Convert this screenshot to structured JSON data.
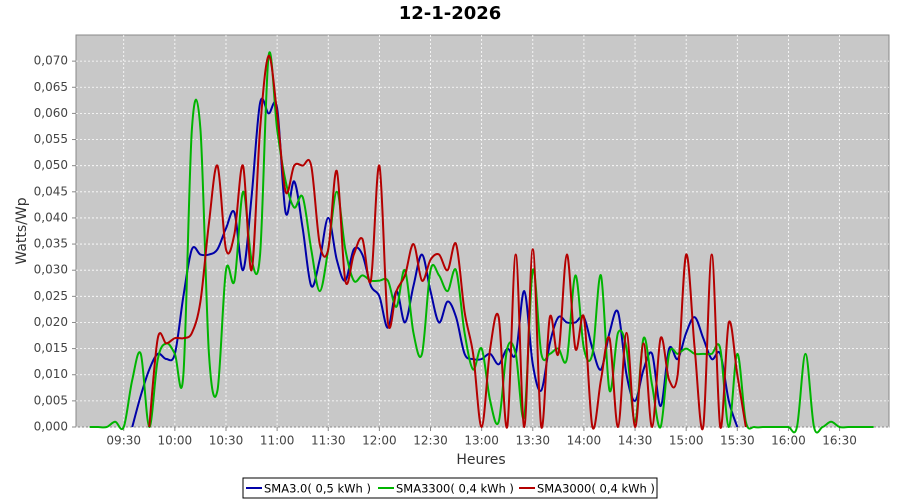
{
  "chart_data": {
    "type": "line",
    "title": "12-1-2026",
    "x_label": "Heures",
    "y_label": "Watts/Wp",
    "x": [
      "09:10",
      "09:15",
      "09:20",
      "09:25",
      "09:30",
      "09:35",
      "09:40",
      "09:45",
      "09:50",
      "09:55",
      "10:00",
      "10:05",
      "10:10",
      "10:15",
      "10:20",
      "10:25",
      "10:30",
      "10:35",
      "10:40",
      "10:45",
      "10:50",
      "10:55",
      "11:00",
      "11:05",
      "11:10",
      "11:15",
      "11:20",
      "11:25",
      "11:30",
      "11:35",
      "11:40",
      "11:45",
      "11:50",
      "11:55",
      "12:00",
      "12:05",
      "12:10",
      "12:15",
      "12:20",
      "12:25",
      "12:30",
      "12:35",
      "12:40",
      "12:45",
      "12:50",
      "12:55",
      "13:00",
      "13:05",
      "13:10",
      "13:15",
      "13:20",
      "13:25",
      "13:30",
      "13:35",
      "13:40",
      "13:45",
      "13:50",
      "13:55",
      "14:00",
      "14:05",
      "14:10",
      "14:15",
      "14:20",
      "14:25",
      "14:30",
      "14:35",
      "14:40",
      "14:45",
      "14:50",
      "14:55",
      "15:00",
      "15:05",
      "15:10",
      "15:15",
      "15:20",
      "15:25",
      "15:30",
      "15:35",
      "15:40",
      "15:45",
      "15:50",
      "15:55",
      "16:00",
      "16:05",
      "16:10",
      "16:15",
      "16:20",
      "16:25",
      "16:30",
      "16:35",
      "16:40",
      "16:45",
      "16:50",
      "16:55"
    ],
    "series": [
      {
        "name": "SMA3.0( 0,5 kWh )",
        "color": "#0000a8",
        "values": [
          null,
          null,
          null,
          null,
          null,
          0.0,
          0.006,
          0.011,
          0.014,
          0.013,
          0.014,
          0.025,
          0.034,
          0.033,
          0.033,
          0.034,
          0.038,
          0.041,
          0.03,
          0.044,
          0.062,
          0.06,
          0.061,
          0.041,
          0.047,
          0.038,
          0.027,
          0.032,
          0.04,
          0.032,
          0.028,
          0.034,
          0.033,
          0.027,
          0.025,
          0.019,
          0.026,
          0.02,
          0.027,
          0.033,
          0.026,
          0.02,
          0.024,
          0.021,
          0.014,
          0.013,
          0.013,
          0.014,
          0.012,
          0.015,
          0.014,
          0.026,
          0.012,
          0.007,
          0.016,
          0.021,
          0.02,
          0.02,
          0.021,
          0.015,
          0.011,
          0.018,
          0.022,
          0.01,
          0.005,
          0.011,
          0.014,
          0.004,
          0.015,
          0.013,
          0.018,
          0.021,
          0.017,
          0.013,
          0.014,
          0.005,
          0.0,
          null,
          null,
          null,
          null,
          null,
          null,
          null,
          null,
          null,
          null,
          null,
          null,
          null,
          null,
          null,
          null,
          null
        ]
      },
      {
        "name": "SMA3300( 0,4 kWh )",
        "color": "#00b400",
        "values": [
          0,
          0,
          0,
          0.001,
          0,
          0.009,
          0.014,
          0,
          0.013,
          0.016,
          0.014,
          0.01,
          0.057,
          0.057,
          0.014,
          0.007,
          0.03,
          0.028,
          0.045,
          0.032,
          0.033,
          0.071,
          0.057,
          0.047,
          0.042,
          0.044,
          0.034,
          0.026,
          0.034,
          0.045,
          0.034,
          0.028,
          0.029,
          0.028,
          0.028,
          0.028,
          0.023,
          0.03,
          0.018,
          0.014,
          0.03,
          0.029,
          0.026,
          0.03,
          0.018,
          0.011,
          0.015,
          0.005,
          0.001,
          0.015,
          0.014,
          0.002,
          0.03,
          0.014,
          0.014,
          0.015,
          0.013,
          0.029,
          0.015,
          0.014,
          0.029,
          0.007,
          0.018,
          0.015,
          0.001,
          0.017,
          0.008,
          0,
          0.014,
          0.014,
          0.015,
          0.014,
          0.014,
          0.014,
          0.015,
          0,
          0.014,
          0.001,
          0,
          0,
          0,
          0,
          0,
          0,
          0.014,
          0,
          0,
          0.001,
          0,
          0,
          0,
          0,
          0,
          null
        ]
      },
      {
        "name": "SMA3000( 0,4 kWh )",
        "color": "#b40000",
        "values": [
          null,
          null,
          null,
          null,
          null,
          null,
          null,
          0,
          0.017,
          0.016,
          0.017,
          0.017,
          0.018,
          0.024,
          0.039,
          0.05,
          0.034,
          0.037,
          0.05,
          0.03,
          0.057,
          0.071,
          0.06,
          0.045,
          0.05,
          0.05,
          0.05,
          0.035,
          0.034,
          0.049,
          0.028,
          0.033,
          0.036,
          0.028,
          0.05,
          0.02,
          0.026,
          0.029,
          0.035,
          0.028,
          0.032,
          0.033,
          0.03,
          0.035,
          0.022,
          0.014,
          0,
          0.015,
          0.021,
          0,
          0.033,
          0,
          0.034,
          0,
          0.021,
          0.014,
          0.033,
          0.015,
          0.021,
          0,
          0.009,
          0.017,
          0,
          0.018,
          0,
          0.016,
          0,
          0.017,
          0.009,
          0.01,
          0.033,
          0.015,
          0,
          0.033,
          0,
          0.02,
          0.01,
          0,
          null,
          null,
          null,
          null,
          null,
          null,
          null,
          null,
          null,
          null,
          null,
          null,
          null,
          null,
          null,
          null
        ]
      }
    ],
    "xlim": [
      "09:02",
      "16:59"
    ],
    "xticks": [
      "09:30",
      "10:00",
      "10:30",
      "11:00",
      "11:30",
      "12:00",
      "12:30",
      "13:00",
      "13:30",
      "14:00",
      "14:30",
      "15:00",
      "15:30",
      "16:00",
      "16:30"
    ],
    "ylim": [
      0,
      0.075
    ],
    "yticks": [
      {
        "value": 0,
        "label": "0,000"
      },
      {
        "value": 0.005,
        "label": "0,005"
      },
      {
        "value": 0.01,
        "label": "0,010"
      },
      {
        "value": 0.015,
        "label": "0,015"
      },
      {
        "value": 0.02,
        "label": "0,020"
      },
      {
        "value": 0.025,
        "label": "0,025"
      },
      {
        "value": 0.03,
        "label": "0,030"
      },
      {
        "value": 0.035,
        "label": "0,035"
      },
      {
        "value": 0.04,
        "label": "0,040"
      },
      {
        "value": 0.045,
        "label": "0,045"
      },
      {
        "value": 0.05,
        "label": "0,050"
      },
      {
        "value": 0.055,
        "label": "0,055"
      },
      {
        "value": 0.06,
        "label": "0,060"
      },
      {
        "value": 0.065,
        "label": "0,065"
      },
      {
        "value": 0.07,
        "label": "0,070"
      }
    ],
    "grid": true,
    "legend": "bottom",
    "background": "#c8c8c8"
  }
}
